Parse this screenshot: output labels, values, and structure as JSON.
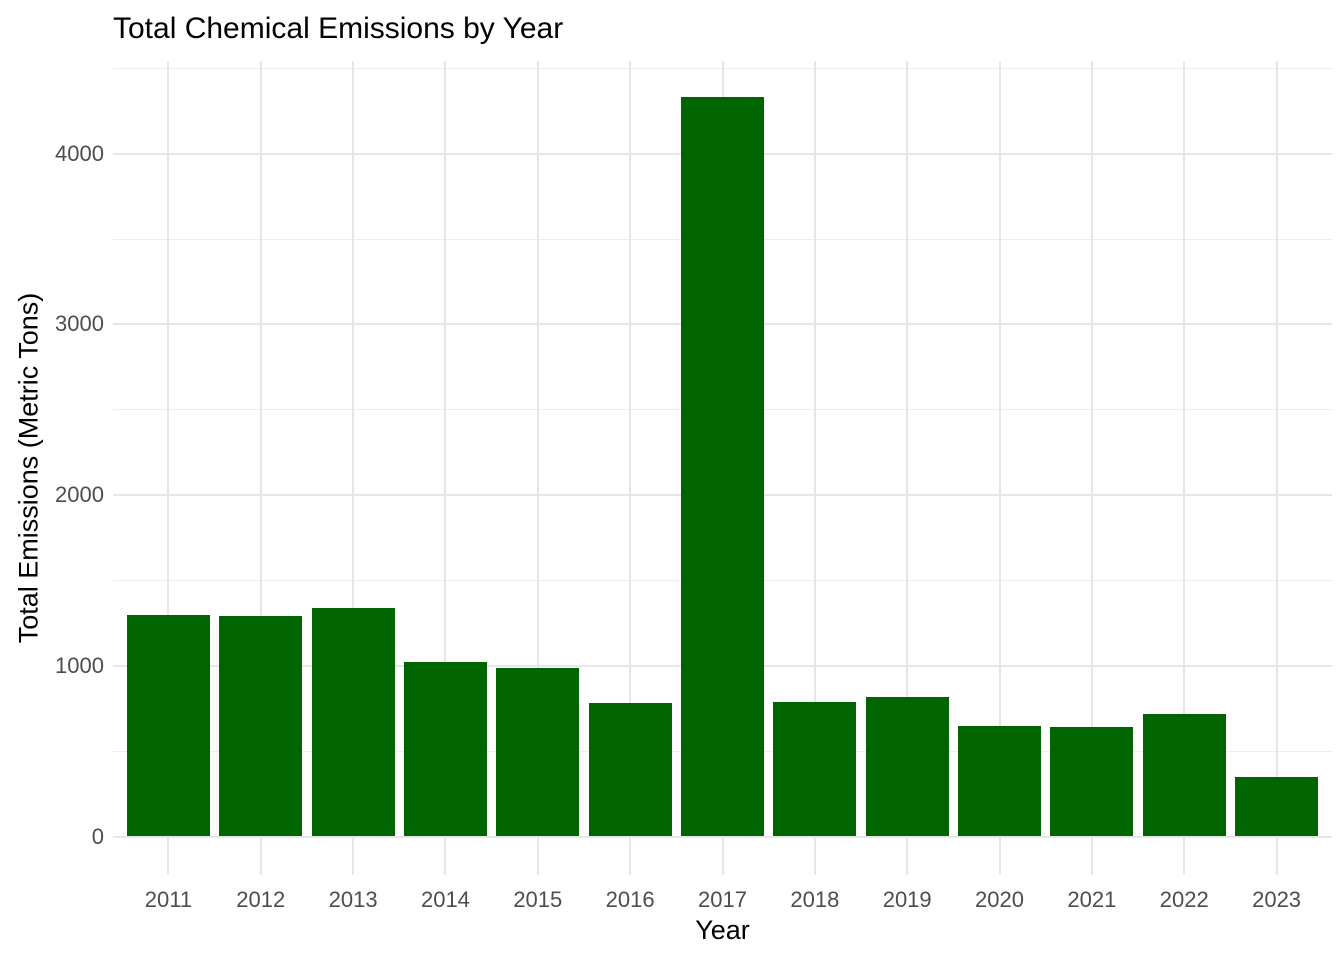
{
  "chart_data": {
    "type": "bar",
    "title": "Total Chemical Emissions by Year",
    "xlabel": "Year",
    "ylabel": "Total Emissions (Metric Tons)",
    "categories": [
      "2011",
      "2012",
      "2013",
      "2014",
      "2015",
      "2016",
      "2017",
      "2018",
      "2019",
      "2020",
      "2021",
      "2022",
      "2023"
    ],
    "values": [
      1295,
      1290,
      1340,
      1025,
      985,
      785,
      4330,
      790,
      820,
      645,
      640,
      715,
      350
    ],
    "y_major_ticks": [
      0,
      1000,
      2000,
      3000,
      4000
    ],
    "y_minor_ticks": [
      500,
      1500,
      2500,
      3500,
      4500
    ],
    "ylim": [
      0,
      4550
    ],
    "grid": "on",
    "legend": "none",
    "colors": {
      "bar": "#006400",
      "background": "#FFFFFF",
      "grid_major": "#E6E6E6",
      "grid_minor": "#EDEDED",
      "axis_text": "#4D4D4D",
      "title_text": "#000000"
    }
  }
}
